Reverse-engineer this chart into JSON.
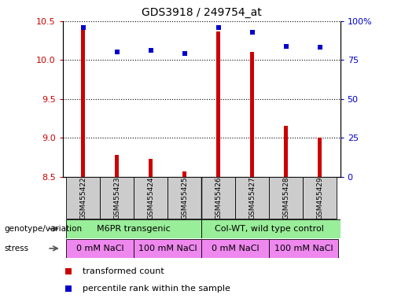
{
  "title": "GDS3918 / 249754_at",
  "samples": [
    "GSM455422",
    "GSM455423",
    "GSM455424",
    "GSM455425",
    "GSM455426",
    "GSM455427",
    "GSM455428",
    "GSM455429"
  ],
  "bar_values": [
    10.43,
    8.78,
    8.73,
    8.57,
    10.37,
    10.1,
    9.15,
    9.0
  ],
  "dot_values": [
    96,
    80,
    81,
    79,
    96,
    93,
    84,
    83
  ],
  "ylim_left": [
    8.5,
    10.5
  ],
  "ylim_right": [
    0,
    100
  ],
  "yticks_left": [
    8.5,
    9.0,
    9.5,
    10.0,
    10.5
  ],
  "yticks_right": [
    0,
    25,
    50,
    75,
    100
  ],
  "bar_color": "#cc0000",
  "dot_color": "#0000cc",
  "bar_width": 0.12,
  "sample_box_color": "#cccccc",
  "genotype_color": "#99ee99",
  "stress_color": "#ee88ee",
  "left_label_color": "#cc0000",
  "right_label_color": "#0000cc",
  "background_color": "#ffffff",
  "row_label_genotype": "genotype/variation",
  "row_label_stress": "stress",
  "stress_labels": [
    "0 mM NaCl",
    "100 mM NaCl",
    "0 mM NaCl",
    "100 mM NaCl"
  ],
  "genotype_labels": [
    "M6PR transgenic",
    "Col-WT, wild type control"
  ]
}
